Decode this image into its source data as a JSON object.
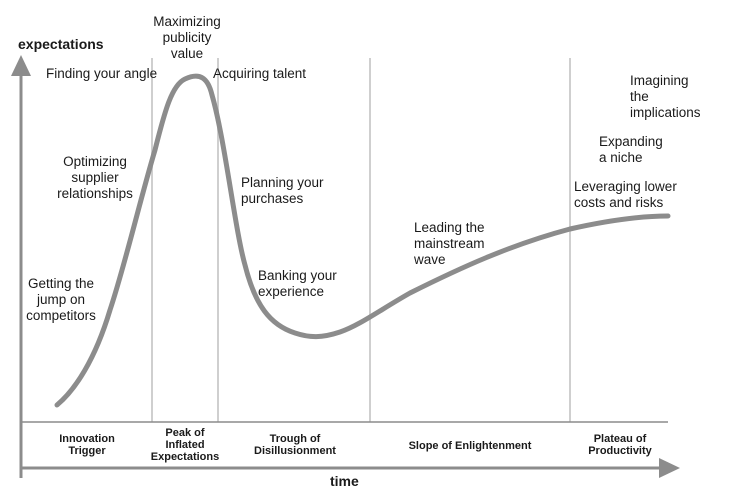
{
  "axes": {
    "y_label": "expectations",
    "x_label": "time"
  },
  "curve_color": "#8c8c8c",
  "gridline_color": "#cfcfcf",
  "axis_color": "#8c8c8c",
  "phases": [
    {
      "label_l1": "Innovation",
      "label_l2": "Trigger",
      "label_l3": ""
    },
    {
      "label_l1": "Peak of",
      "label_l2": "Inflated",
      "label_l3": "Expectations"
    },
    {
      "label_l1": "Trough of",
      "label_l2": "Disillusionment",
      "label_l3": ""
    },
    {
      "label_l1": "Slope of Enlightenment",
      "label_l2": "",
      "label_l3": ""
    },
    {
      "label_l1": "Plateau of",
      "label_l2": "Productivity",
      "label_l3": ""
    }
  ],
  "annotations": {
    "getting_jump": {
      "l1": "Getting the",
      "l2": "jump on",
      "l3": "competitors"
    },
    "optimizing": {
      "l1": "Optimizing",
      "l2": "supplier",
      "l3": "relationships"
    },
    "finding_angle": {
      "l1": "Finding your angle"
    },
    "maximizing": {
      "l1": "Maximizing",
      "l2": "publicity",
      "l3": "value"
    },
    "acquiring": {
      "l1": "Acquiring talent"
    },
    "planning": {
      "l1": "Planning your",
      "l2": "purchases"
    },
    "banking": {
      "l1": "Banking your",
      "l2": "experience"
    },
    "leading": {
      "l1": "Leading the",
      "l2": "mainstream",
      "l3": "wave"
    },
    "leveraging": {
      "l1": "Leveraging lower",
      "l2": "costs and risks"
    },
    "expanding": {
      "l1": "Expanding",
      "l2": "a niche"
    },
    "imagining": {
      "l1": "Imagining",
      "l2": "the",
      "l3": "implications"
    }
  }
}
